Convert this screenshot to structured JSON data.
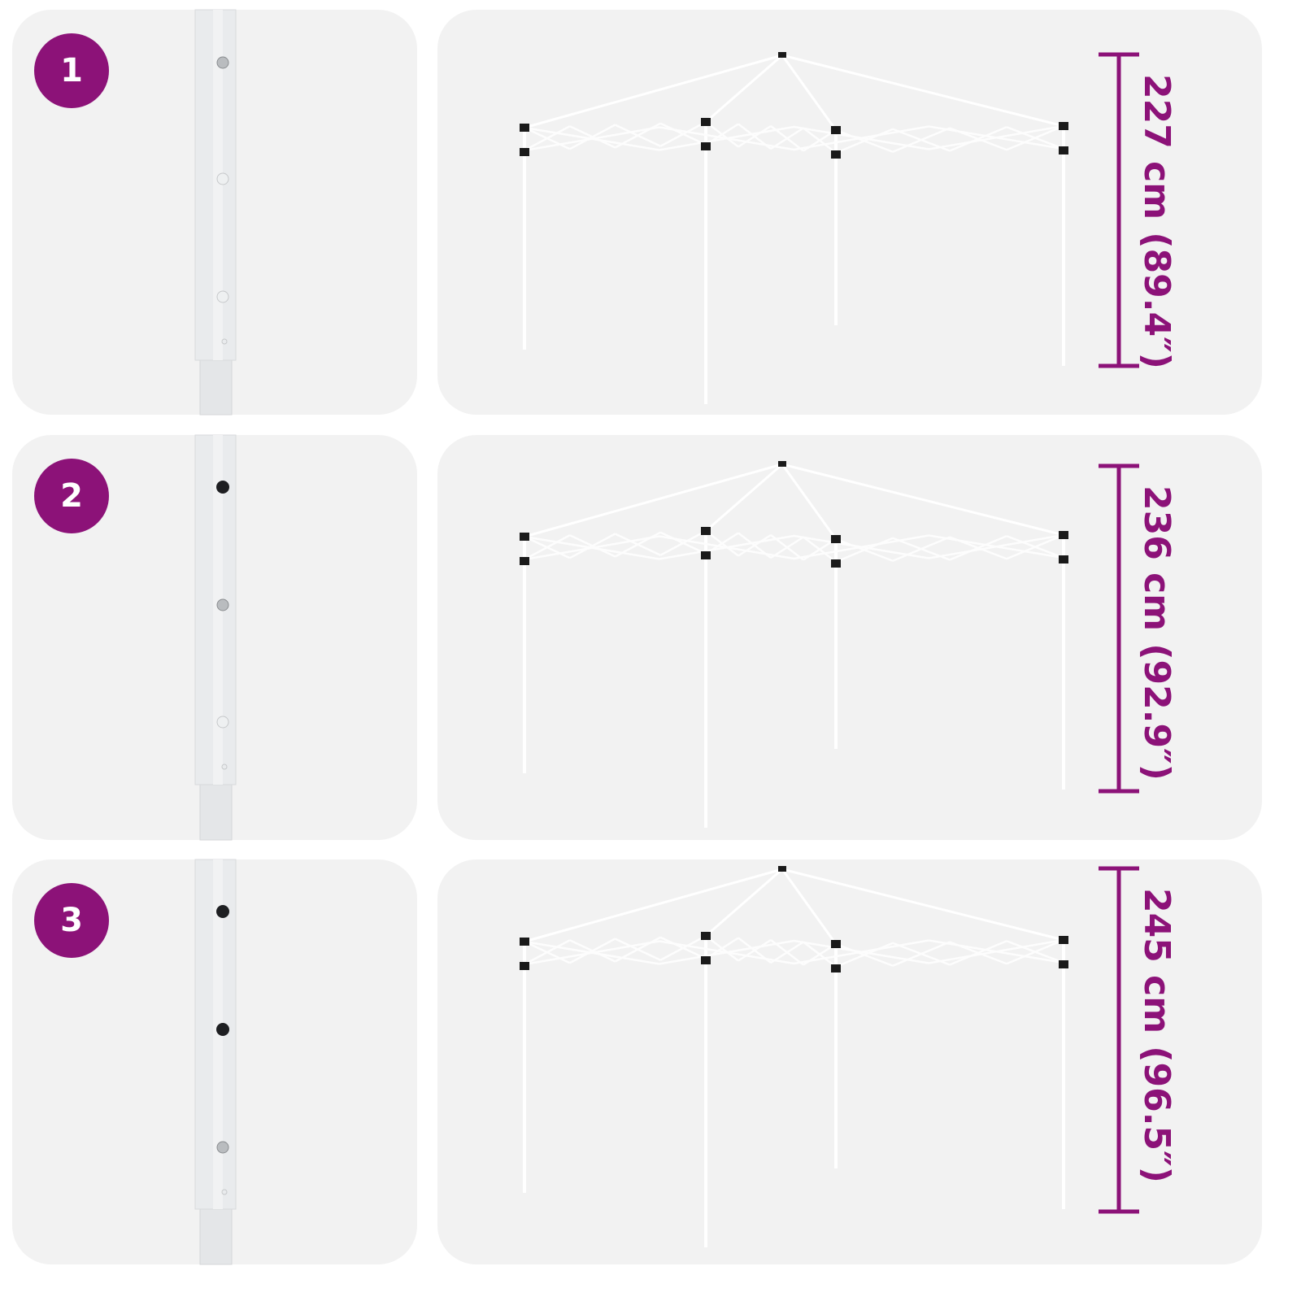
{
  "accent_color": "#8c1278",
  "steps": [
    {
      "number": "1",
      "height_label": "227 cm (89.4″)",
      "pin_holes": [
        "screw",
        "hole",
        "hole",
        "small"
      ]
    },
    {
      "number": "2",
      "height_label": "236 cm (92.9″)",
      "pin_holes": [
        "pin",
        "screw",
        "hole",
        "small"
      ]
    },
    {
      "number": "3",
      "height_label": "245 cm (96.5″)",
      "pin_holes": [
        "pin",
        "pin",
        "screw",
        "small"
      ]
    }
  ]
}
